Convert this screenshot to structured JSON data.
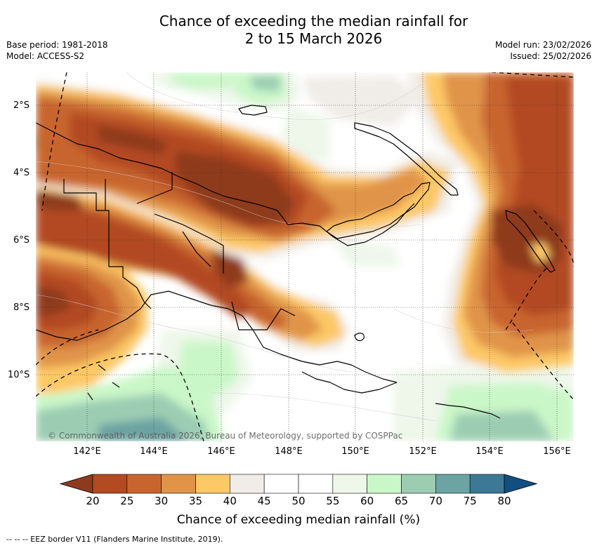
{
  "title_line1": "Chance of exceeding the median rainfall for",
  "title_line2": "2 to 15 March 2026",
  "meta_left": {
    "base_period": "Base period: 1981-2018",
    "model": "Model: ACCESS-S2"
  },
  "meta_right": {
    "model_run": "Model run: 23/02/2026",
    "issued": "Issued: 25/02/2026"
  },
  "lat_labels": [
    "2°S",
    "4°S",
    "6°S",
    "8°S",
    "10°S"
  ],
  "lon_labels": [
    "142°E",
    "144°E",
    "146°E",
    "148°E",
    "150°E",
    "152°E",
    "154°E",
    "156°E"
  ],
  "copyright": "© Commonwealth of Australia 2026, Bureau of Meteorology, supported by COSPPac",
  "colorbar": {
    "ticks": [
      "20",
      "25",
      "30",
      "35",
      "40",
      "45",
      "50",
      "55",
      "60",
      "65",
      "70",
      "75",
      "80"
    ],
    "colors": [
      "#8e3a1c",
      "#b24a22",
      "#c8652e",
      "#e09448",
      "#fdc866",
      "#f0ede8",
      "#ffffff",
      "#ffffff",
      "#eef7ea",
      "#caf7c8",
      "#9ccdb3",
      "#6ca3a3",
      "#3d7896",
      "#124e80"
    ],
    "title": "Chance of exceeding median rainfall (%)"
  },
  "footer": "-- -- -- EEZ border V11 (Flanders Marine Institute, 2019)."
}
